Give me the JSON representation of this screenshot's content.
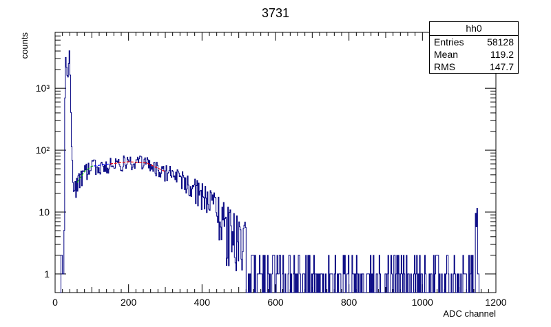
{
  "chart_data": {
    "type": "histogram",
    "title": "3731",
    "xlabel": "ADC channel",
    "ylabel": "counts",
    "xlim": [
      0,
      1200
    ],
    "ylim": [
      0.5,
      8000
    ],
    "yscale": "log",
    "grid": false,
    "x_ticks": [
      0,
      200,
      400,
      600,
      800,
      1000,
      1200
    ],
    "y_ticks": [
      {
        "value": 1,
        "label": "1"
      },
      {
        "value": 10,
        "label": "10"
      },
      {
        "value": 100,
        "label": "10²"
      },
      {
        "value": 1000,
        "label": "10³"
      }
    ],
    "series_color": "#000080",
    "fit_colors": [
      "#ff0000",
      "#00aa00",
      "#0000ff"
    ],
    "approx_shape": {
      "pedestal_peak": {
        "x": 28,
        "y": 4500
      },
      "second_peak": {
        "x": 40,
        "y": 3300
      },
      "valley": {
        "x": 55,
        "y": 20
      },
      "broad_max": {
        "x": 220,
        "y": 65
      },
      "overflow_spike": {
        "x": 1148,
        "y": 14
      }
    },
    "x_values_sampled": [
      20,
      24,
      28,
      32,
      36,
      40,
      44,
      50,
      55,
      60,
      80,
      100,
      150,
      200,
      250,
      300,
      350,
      400,
      450,
      500,
      550,
      600,
      650,
      700,
      800,
      900,
      1000,
      1100,
      1140,
      1148,
      1152
    ],
    "y_values_sampled": [
      0.6,
      1,
      4500,
      1500,
      3000,
      3300,
      150,
      30,
      22,
      30,
      45,
      55,
      60,
      65,
      62,
      45,
      32,
      20,
      10,
      4,
      2,
      1.2,
      1,
      1,
      1,
      1,
      1,
      1,
      1,
      14,
      0.6
    ]
  },
  "stats_box": {
    "name": "hh0",
    "rows": [
      {
        "label": "Entries",
        "value": "58128"
      },
      {
        "label": "Mean",
        "value": "119.2"
      },
      {
        "label": "RMS",
        "value": "147.7"
      }
    ]
  }
}
